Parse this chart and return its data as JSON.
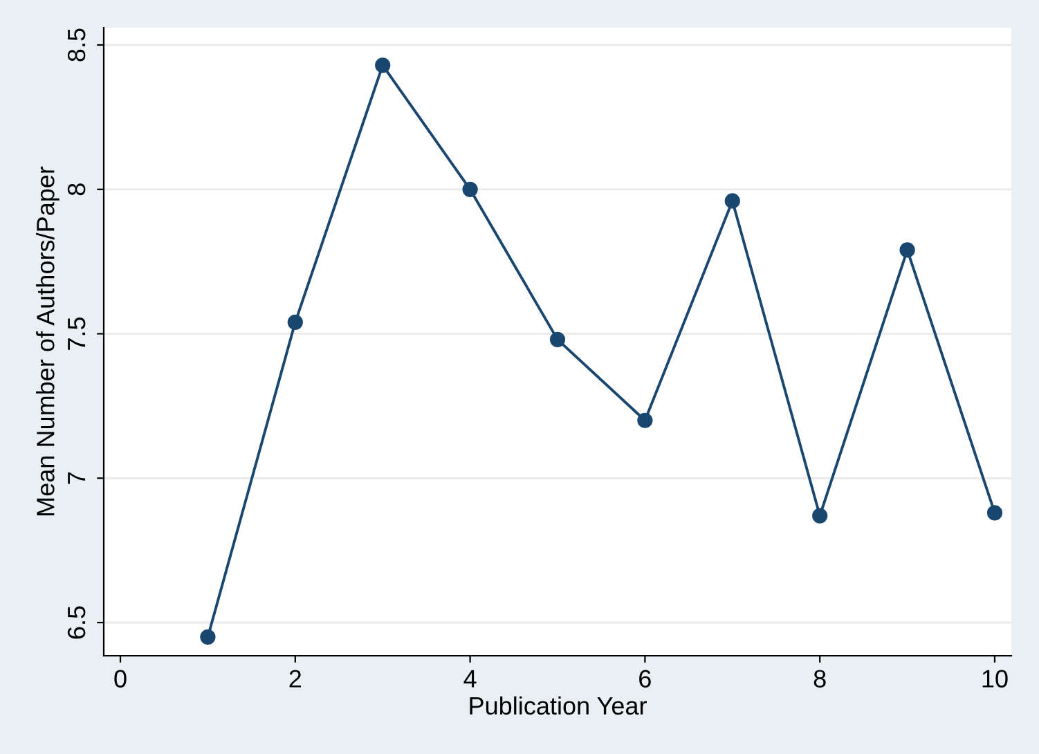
{
  "chart_data": {
    "type": "line",
    "xlabel": "Publication Year",
    "ylabel": "Mean Number of Authors/Paper",
    "x": [
      1,
      2,
      3,
      4,
      5,
      6,
      7,
      8,
      9,
      10
    ],
    "series": [
      {
        "color": "#1a476f",
        "values": [
          6.45,
          7.54,
          8.43,
          8.0,
          7.48,
          7.2,
          7.96,
          6.87,
          7.79,
          6.88
        ]
      }
    ],
    "xlim": [
      -0.19,
      10.19
    ],
    "xticks": [
      0,
      2,
      4,
      6,
      8,
      10
    ],
    "ylim": [
      6.385,
      8.56
    ],
    "yticks": [
      6.5,
      7,
      7.5,
      8,
      8.5
    ],
    "grid": "y",
    "marker": "circle",
    "line_style": "solid",
    "legend": false
  }
}
